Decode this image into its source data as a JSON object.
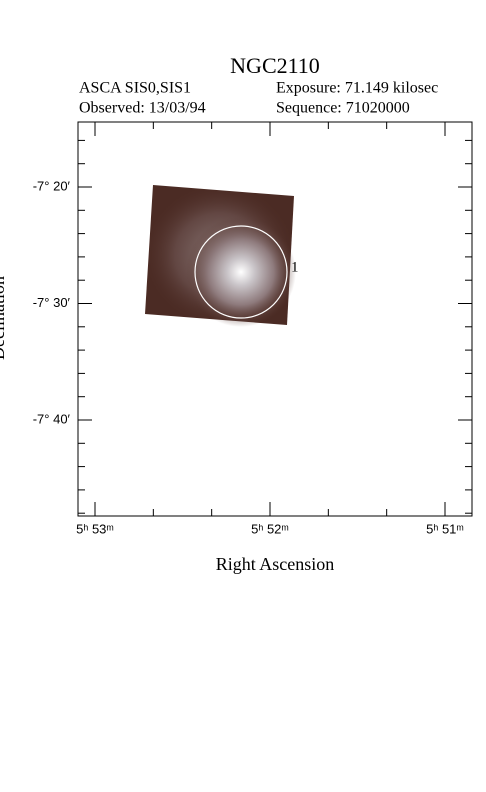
{
  "title": "NGC2110",
  "header": {
    "instrument": "ASCA SIS0,SIS1",
    "exposure": "Exposure: 71.149 kilosec",
    "observed": "Observed: 13/03/94",
    "sequence": "Sequence: 71020000"
  },
  "axes": {
    "x_label": "Right Ascension",
    "y_label": "Declination",
    "x_ticks": [
      "5ʰ 53ᵐ",
      "5ʰ 52ᵐ",
      "5ʰ 51ᵐ"
    ],
    "y_ticks": [
      "-7° 20′",
      "-7° 30′",
      "-7° 40′"
    ]
  },
  "sources": [
    {
      "label": "1"
    }
  ]
}
